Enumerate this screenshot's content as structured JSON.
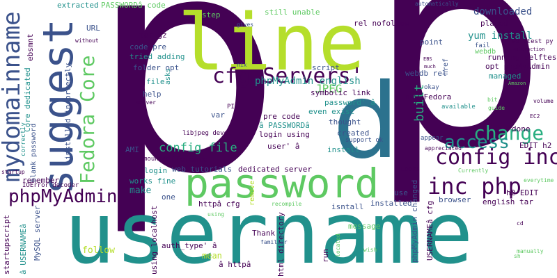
{
  "palette": {
    "dark_purple": "#440154",
    "indigo": "#3b528b",
    "teal": "#21918c",
    "green": "#5ec962",
    "lime": "#b5de2b",
    "mid_blue": "#2c728e",
    "sea_green": "#28ae80"
  },
  "words": {
    "p_main": "p",
    "p_right": "p",
    "p_center": "p",
    "line": "line",
    "username": "username",
    "password": "password",
    "suggest": "suggest",
    "mydomainname": "mydomainname",
    "fedora_core": "Fedora Core",
    "cfg_servers": "cfg Servers'",
    "phpmyadmin": "phpMyAdmin",
    "config_inc": "config inc",
    "inc_php": "inc php",
    "change": "change",
    "access": "access",
    "config_file": "config file",
    "phpmyadmin_english": "phpMyAdmin english",
    "jpeg": "JPEG",
    "downloaded": "downloaded",
    "yum_install": "yum install",
    "built": "built",
    "extracted": "extracted",
    "passworda_code": "PASSWORDâ code",
    "step": "step",
    "still_unable": "still unable",
    "rel_nofollow": "rel nofollow",
    "automatically": "automatically",
    "script": "script",
    "url": "URL",
    "tar_gz": "tar gz",
    "code_pre": "code pre",
    "tried_adding": "tried adding",
    "folder_opt": "folder opt",
    "ebsmnt": "ebsmnt",
    "installed_incorrectly": "installed incorrectly",
    "core_dedicated": "Core dedicated",
    "point": "point",
    "placed": "placed",
    "selftest_py": "selftest py",
    "running_selftest": "running selftest",
    "opt_phpmyadmin": "opt phpMyAdmin",
    "managed": "managed",
    "webdb_rel": "webdb rel",
    "new_fedora": "new Fedora",
    "symbolic_link": "symbolic link",
    "password_a": "password' â",
    "even_exist": "even exist",
    "thought": "thought",
    "pre_code": "pre code",
    "a_passworda": "â PASSWORDâ",
    "login_using": "login using",
    "user_a": "user' â",
    "created": "created",
    "support_ok": "support ok",
    "install": "install",
    "libjpeg_devel": "libjpeg devel",
    "pil": "PIL",
    "var": "var",
    "help": "help",
    "file": "file",
    "asks": "asks",
    "gives": "gives",
    "nix": "nix",
    "ami": "AMI",
    "mounted": "mounted",
    "login": "login",
    "web_tutorials": "web tutorials",
    "difference": "difference",
    "dedicated_server": "dedicated server",
    "works_fine": "works fine",
    "make": "make",
    "one": "one",
    "remember": "remember",
    "ioerror_decoder": "IOError decoder",
    "blank_password": "blank password",
    "mysql_server": "MySQL server",
    "a_usernamea": "â USERNAMEâ",
    "startupscript": "startupscript",
    "startup": "startup",
    "without": "without",
    "correctly": "correctly",
    "follow": "follow",
    "using_localhost": "using localhost",
    "auth_type": "auth_type' â",
    "mean": "mean",
    "a_httpa": "â httpâ",
    "html_directory": "html directory",
    "httpa_cfg": "httpâ cfg",
    "remove": "remove",
    "recompile": "recompile",
    "using": "using",
    "familiar": "familiar",
    "thank": "Thank",
    "run": "run",
    "message": "message",
    "located": "located",
    "wish": "wish",
    "isntall": "isntall",
    "installed": "installed",
    "use": "use",
    "phpmyadmin_changed": "phpMyAdmin changed",
    "usernamea_cfg": "USERNAMEâ cfg",
    "browser": "browser",
    "english_tar": "english tar",
    "h2_edit": "h2 EDIT",
    "edit_h2": "EDIT h2",
    "done": "done",
    "volume": "volume",
    "ec2": "EC2",
    "guide": "guide",
    "bit": "bit",
    "available": "available",
    "okay": "okay",
    "appear": "appear",
    "appreciated": "appreciated",
    "looks": "Looks",
    "currently": "Currently",
    "everytime": "everytime",
    "manually": "manually",
    "sh": "sh",
    "cd": "cd",
    "fail": "fail",
    "href": "href",
    "webdb": "webdb",
    "interaction": "interaction",
    "amazon": "Amazon",
    "ebs": "EBS",
    "much": "much",
    "server": "server"
  }
}
